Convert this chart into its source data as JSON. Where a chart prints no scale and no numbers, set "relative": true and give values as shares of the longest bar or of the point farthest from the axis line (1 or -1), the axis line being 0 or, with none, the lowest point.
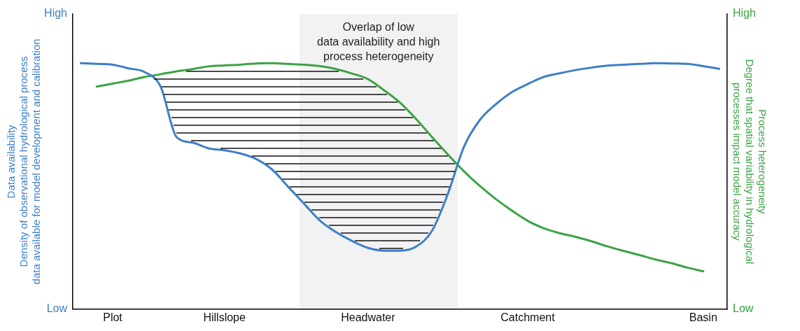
{
  "chart_data": {
    "type": "line",
    "relative": true,
    "ylabel": "Data availability\nDensity of observational hydrological process\ndata available for model development and calibration",
    "y2label": "Process heterogeneity\nDegree that spatial variability in hydrological\nprocesses impact model accuracy",
    "categories": [
      null,
      null,
      "Plot",
      null,
      null,
      null,
      null,
      null,
      null,
      "Hillslope",
      null,
      null,
      null,
      null,
      null,
      null,
      null,
      null,
      "Headwater",
      null,
      null,
      null,
      null,
      null,
      null,
      null,
      null,
      null,
      "Catchment",
      null,
      null,
      null,
      null,
      null,
      null,
      null,
      null,
      null,
      null,
      "Basin",
      null
    ],
    "grid": false,
    "legend": false,
    "marker": "none",
    "line_style": "solid",
    "annotations": [
      "High",
      "Low",
      "High",
      "Low",
      "Overlap of low\ndata availability and high\nprocess heterogeneity"
    ],
    "series": [
      {
        "color": "#3d7fc6",
        "values": [
          1.0,
          0.997,
          0.994,
          0.979,
          0.964,
          0.905,
          0.7,
          0.677,
          0.654,
          0.646,
          0.633,
          0.61,
          0.567,
          0.497,
          0.428,
          0.359,
          0.313,
          0.277,
          0.249,
          0.238,
          0.238,
          0.254,
          0.318,
          0.469,
          0.659,
          0.769,
          0.833,
          0.882,
          0.915,
          0.944,
          0.959,
          0.972,
          0.982,
          0.99,
          0.994,
          0.997,
          1.0,
          0.999,
          0.997,
          0.988,
          0.977
        ]
      },
      {
        "color": "#3ba345",
        "axis": "y2",
        "values": [
          null,
          0.905,
          0.917,
          0.929,
          0.944,
          0.955,
          0.967,
          0.976,
          0.987,
          0.991,
          0.994,
          0.999,
          1.0,
          0.997,
          0.994,
          0.988,
          0.976,
          0.958,
          0.935,
          0.89,
          0.84,
          0.774,
          0.7,
          0.629,
          0.561,
          0.501,
          0.448,
          0.401,
          0.359,
          0.329,
          0.309,
          0.294,
          0.276,
          0.255,
          0.237,
          0.22,
          0.202,
          0.187,
          0.169,
          0.154,
          null
        ]
      }
    ]
  }
}
